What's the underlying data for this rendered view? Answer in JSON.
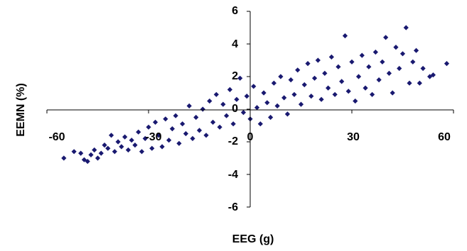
{
  "chart_data": {
    "type": "scatter",
    "title": "",
    "xlabel": "EEG (g)",
    "ylabel": "EEMN (%)",
    "xlim": [
      -60,
      60
    ],
    "ylim": [
      -6,
      6
    ],
    "xticks": [
      "-60",
      "-30",
      "0",
      "30",
      "60"
    ],
    "yticks": [
      "6",
      "4",
      "2",
      "0",
      "-2",
      "-4",
      "-6"
    ],
    "grid": false,
    "legend": "none",
    "marker": "diamond",
    "color": "#191970",
    "series": [
      {
        "values_note": "",
        "points": [
          [
            -55.0,
            -3.0
          ],
          [
            -52.0,
            -2.6
          ],
          [
            -50.0,
            -2.7
          ],
          [
            -49.0,
            -3.1
          ],
          [
            -48.0,
            -3.2
          ],
          [
            -47.0,
            -2.8
          ],
          [
            -46.0,
            -2.5
          ],
          [
            -45.0,
            -3.0
          ],
          [
            -44.0,
            -2.7
          ],
          [
            -43.0,
            -2.2
          ],
          [
            -42.0,
            -2.4
          ],
          [
            -41.0,
            -1.6
          ],
          [
            -40.0,
            -2.6
          ],
          [
            -39.0,
            -2.0
          ],
          [
            -38.0,
            -2.3
          ],
          [
            -37.0,
            -1.7
          ],
          [
            -36.0,
            -2.5
          ],
          [
            -35.0,
            -1.9
          ],
          [
            -34.0,
            -2.2
          ],
          [
            -33.0,
            -1.4
          ],
          [
            -32.0,
            -2.6
          ],
          [
            -31.0,
            -1.8
          ],
          [
            -30.0,
            -1.1
          ],
          [
            -29.0,
            -2.4
          ],
          [
            -28.0,
            -0.8
          ],
          [
            -27.0,
            -1.6
          ],
          [
            -26.0,
            -2.3
          ],
          [
            -25.0,
            -0.6
          ],
          [
            -24.0,
            -1.9
          ],
          [
            -23.0,
            -1.2
          ],
          [
            -22.0,
            -0.4
          ],
          [
            -21.0,
            -2.1
          ],
          [
            -20.0,
            -0.9
          ],
          [
            -19.0,
            -1.5
          ],
          [
            -18.0,
            0.2
          ],
          [
            -17.0,
            -1.8
          ],
          [
            -16.0,
            -0.5
          ],
          [
            -15.0,
            -1.3
          ],
          [
            -14.0,
            0.0
          ],
          [
            -13.0,
            -1.6
          ],
          [
            -12.0,
            0.5
          ],
          [
            -11.0,
            -0.8
          ],
          [
            -10.0,
            0.9
          ],
          [
            -9.0,
            -1.1
          ],
          [
            -8.0,
            0.3
          ],
          [
            -7.0,
            -0.4
          ],
          [
            -6.0,
            1.2
          ],
          [
            -5.0,
            -0.9
          ],
          [
            -4.0,
            0.6
          ],
          [
            -3.0,
            1.9
          ],
          [
            -2.0,
            -0.2
          ],
          [
            -1.0,
            0.8
          ],
          [
            0.0,
            -0.6
          ],
          [
            1.0,
            1.4
          ],
          [
            2.0,
            0.1
          ],
          [
            3.0,
            -0.9
          ],
          [
            4.0,
            1.0
          ],
          [
            5.0,
            0.4
          ],
          [
            6.0,
            -0.5
          ],
          [
            7.0,
            1.6
          ],
          [
            8.0,
            0.2
          ],
          [
            9.0,
            2.0
          ],
          [
            10.0,
            0.7
          ],
          [
            11.0,
            -0.3
          ],
          [
            12.0,
            1.8
          ],
          [
            13.0,
            0.9
          ],
          [
            14.0,
            2.4
          ],
          [
            15.0,
            0.3
          ],
          [
            16.0,
            1.5
          ],
          [
            17.0,
            2.8
          ],
          [
            18.0,
            0.8
          ],
          [
            19.0,
            1.9
          ],
          [
            20.0,
            3.0
          ],
          [
            21.0,
            0.6
          ],
          [
            22.0,
            2.2
          ],
          [
            23.0,
            1.3
          ],
          [
            24.0,
            3.2
          ],
          [
            25.0,
            0.9
          ],
          [
            26.0,
            2.6
          ],
          [
            27.0,
            1.7
          ],
          [
            28.0,
            4.5
          ],
          [
            29.0,
            1.1
          ],
          [
            30.0,
            2.9
          ],
          [
            31.0,
            0.5
          ],
          [
            32.0,
            2.0
          ],
          [
            33.0,
            3.3
          ],
          [
            34.0,
            1.3
          ],
          [
            35.0,
            2.6
          ],
          [
            36.0,
            0.9
          ],
          [
            37.0,
            3.5
          ],
          [
            38.0,
            1.8
          ],
          [
            39.0,
            2.9
          ],
          [
            40.0,
            4.4
          ],
          [
            41.0,
            2.2
          ],
          [
            42.0,
            1.0
          ],
          [
            43.0,
            3.8
          ],
          [
            44.0,
            2.5
          ],
          [
            45.0,
            3.4
          ],
          [
            46.0,
            5.0
          ],
          [
            47.0,
            1.6
          ],
          [
            48.0,
            2.9
          ],
          [
            49.0,
            3.6
          ],
          [
            50.0,
            1.6
          ],
          [
            51.0,
            2.5
          ],
          [
            53.0,
            2.0
          ],
          [
            54.0,
            2.1
          ],
          [
            58.0,
            2.8
          ]
        ]
      }
    ]
  }
}
